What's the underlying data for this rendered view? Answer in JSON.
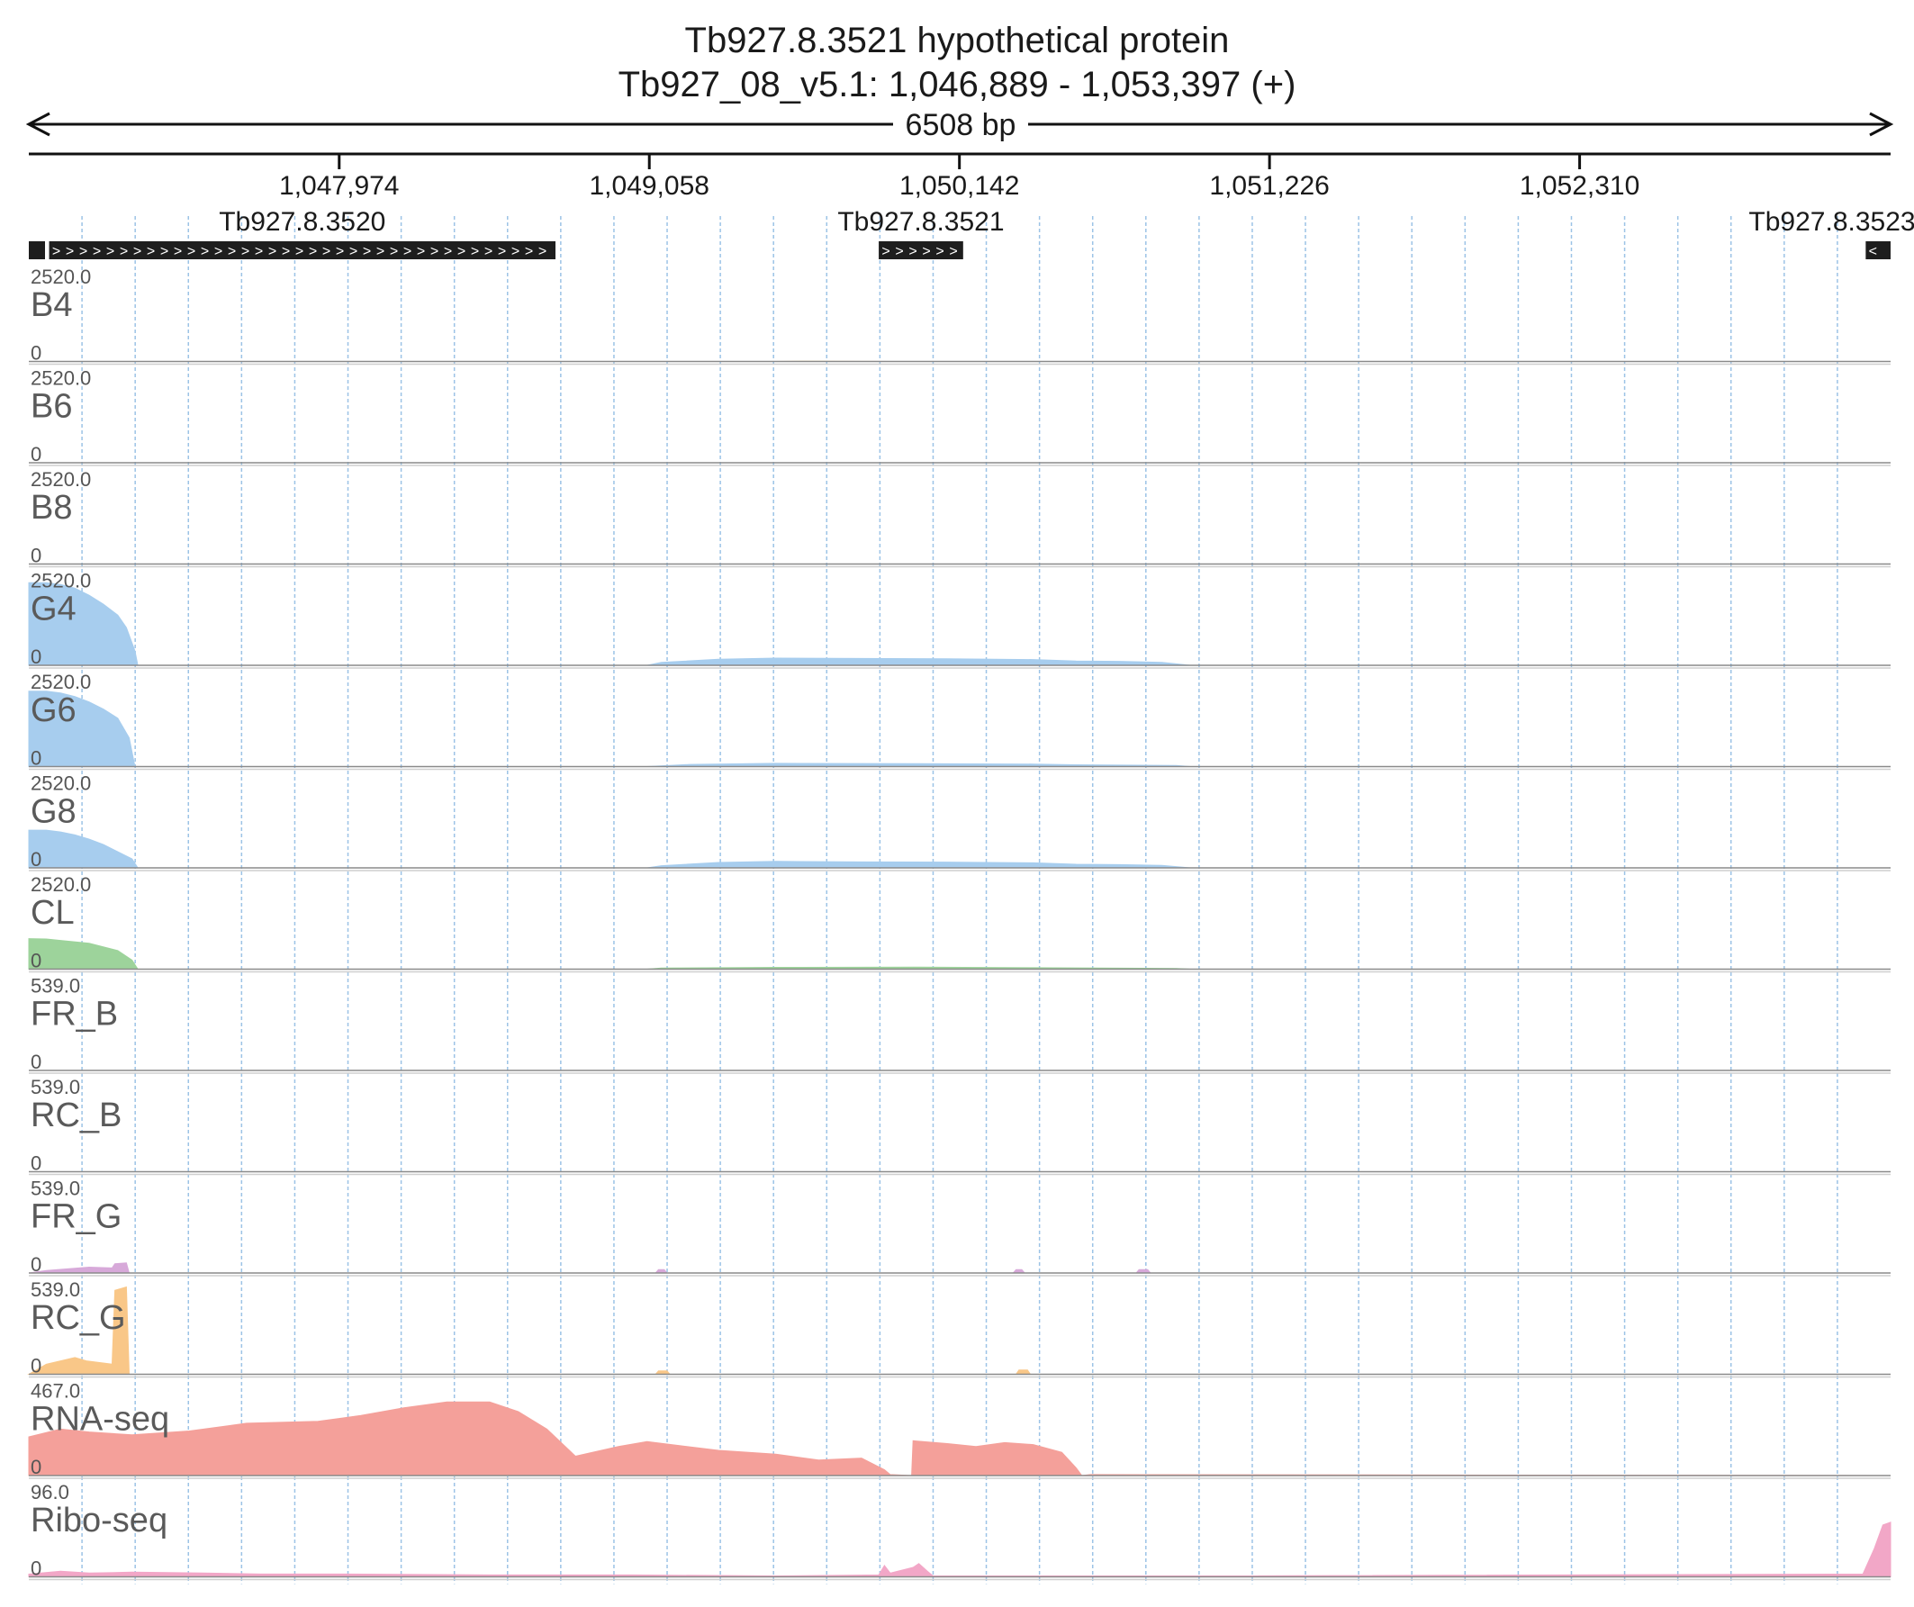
{
  "header": {
    "title": "Tb927.8.3521  hypothetical protein",
    "locus": "Tb927_08_v5.1: 1,046,889 - 1,053,397 (+)",
    "span_label": "6508 bp"
  },
  "chart_data": {
    "type": "area",
    "region": {
      "chrom": "Tb927_08_v5.1",
      "start": 1046889,
      "end": 1053397,
      "strand": "+"
    },
    "ruler_ticks": [
      1047974,
      1049058,
      1050142,
      1051226,
      1052310
    ],
    "ruler_tick_labels": [
      "1,047,974",
      "1,049,058",
      "1,050,142",
      "1,051,226",
      "1,052,310"
    ],
    "genes": [
      {
        "name": "Tb927.8.3520",
        "start": 1046960,
        "end": 1048730,
        "strand": "+"
      },
      {
        "name": "Tb927.8.3521",
        "start": 1049860,
        "end": 1050155,
        "strand": "+"
      },
      {
        "name": "Tb927.8.3523",
        "start": 1053310,
        "end": 1053397,
        "strand": "-"
      }
    ],
    "tracks": [
      {
        "name": "B4",
        "max": 2520.0,
        "max_label": "2520.0",
        "min_label": "0",
        "color": "#f5c97a",
        "points": [
          [
            1046889,
            0
          ],
          [
            1049500,
            0
          ],
          [
            1049600,
            8
          ],
          [
            1049900,
            0
          ],
          [
            1053397,
            0
          ]
        ]
      },
      {
        "name": "B6",
        "max": 2520.0,
        "max_label": "2520.0",
        "min_label": "0",
        "color": "#f5c97a",
        "points": [
          [
            1046889,
            0
          ],
          [
            1053397,
            0
          ]
        ]
      },
      {
        "name": "B8",
        "max": 2520.0,
        "max_label": "2520.0",
        "min_label": "0",
        "color": "#cfe3b0",
        "points": [
          [
            1046889,
            0
          ],
          [
            1053397,
            0
          ]
        ]
      },
      {
        "name": "G4",
        "max": 2520.0,
        "max_label": "2520.0",
        "min_label": "0",
        "color": "#a7cdee",
        "points": [
          [
            1046889,
            2300
          ],
          [
            1046950,
            2300
          ],
          [
            1047000,
            2250
          ],
          [
            1047050,
            2150
          ],
          [
            1047100,
            1950
          ],
          [
            1047150,
            1700
          ],
          [
            1047200,
            1400
          ],
          [
            1047230,
            1050
          ],
          [
            1047260,
            400
          ],
          [
            1047270,
            0
          ],
          [
            1049050,
            0
          ],
          [
            1049100,
            80
          ],
          [
            1049300,
            170
          ],
          [
            1049500,
            200
          ],
          [
            1049800,
            190
          ],
          [
            1050100,
            180
          ],
          [
            1050400,
            160
          ],
          [
            1050550,
            120
          ],
          [
            1050700,
            110
          ],
          [
            1050850,
            80
          ],
          [
            1050950,
            0
          ],
          [
            1053397,
            0
          ]
        ]
      },
      {
        "name": "G6",
        "max": 2520.0,
        "max_label": "2520.0",
        "min_label": "0",
        "color": "#a7cdee",
        "points": [
          [
            1046889,
            2100
          ],
          [
            1046950,
            2100
          ],
          [
            1047000,
            2050
          ],
          [
            1047050,
            1950
          ],
          [
            1047100,
            1800
          ],
          [
            1047150,
            1600
          ],
          [
            1047200,
            1350
          ],
          [
            1047240,
            800
          ],
          [
            1047260,
            0
          ],
          [
            1049050,
            0
          ],
          [
            1049200,
            60
          ],
          [
            1049500,
            90
          ],
          [
            1050000,
            80
          ],
          [
            1050400,
            70
          ],
          [
            1050550,
            50
          ],
          [
            1050900,
            30
          ],
          [
            1050950,
            0
          ],
          [
            1053397,
            0
          ]
        ]
      },
      {
        "name": "G8",
        "max": 2520.0,
        "max_label": "2520.0",
        "min_label": "0",
        "color": "#a7cdee",
        "points": [
          [
            1046889,
            1050
          ],
          [
            1046950,
            1050
          ],
          [
            1047000,
            1000
          ],
          [
            1047050,
            920
          ],
          [
            1047100,
            800
          ],
          [
            1047150,
            650
          ],
          [
            1047200,
            450
          ],
          [
            1047250,
            250
          ],
          [
            1047270,
            0
          ],
          [
            1049050,
            0
          ],
          [
            1049100,
            60
          ],
          [
            1049300,
            150
          ],
          [
            1049500,
            180
          ],
          [
            1049800,
            165
          ],
          [
            1050100,
            160
          ],
          [
            1050400,
            140
          ],
          [
            1050550,
            100
          ],
          [
            1050700,
            90
          ],
          [
            1050850,
            70
          ],
          [
            1050950,
            0
          ],
          [
            1053397,
            0
          ]
        ]
      },
      {
        "name": "CL",
        "max": 2520.0,
        "max_label": "2520.0",
        "min_label": "0",
        "color": "#9dd39b",
        "points": [
          [
            1046889,
            850
          ],
          [
            1046950,
            840
          ],
          [
            1047000,
            800
          ],
          [
            1047100,
            720
          ],
          [
            1047200,
            520
          ],
          [
            1047250,
            250
          ],
          [
            1047270,
            0
          ],
          [
            1049050,
            0
          ],
          [
            1049100,
            30
          ],
          [
            1049500,
            50
          ],
          [
            1050000,
            55
          ],
          [
            1050400,
            40
          ],
          [
            1050900,
            20
          ],
          [
            1050950,
            0
          ],
          [
            1053397,
            0
          ]
        ]
      },
      {
        "name": "FR_B",
        "max": 539.0,
        "max_label": "539.0",
        "min_label": "0",
        "color": "#d7a9d9",
        "points": [
          [
            1046889,
            0
          ],
          [
            1053397,
            0
          ]
        ]
      },
      {
        "name": "RC_B",
        "max": 539.0,
        "max_label": "539.0",
        "min_label": "0",
        "color": "#f5c97a",
        "points": [
          [
            1046889,
            0
          ],
          [
            1053397,
            0
          ]
        ]
      },
      {
        "name": "FR_G",
        "max": 539.0,
        "max_label": "539.0",
        "min_label": "0",
        "color": "#d7a9d9",
        "points": [
          [
            1046889,
            0
          ],
          [
            1046950,
            15
          ],
          [
            1047100,
            35
          ],
          [
            1047180,
            30
          ],
          [
            1047190,
            55
          ],
          [
            1047230,
            60
          ],
          [
            1047240,
            0
          ],
          [
            1049080,
            0
          ],
          [
            1049090,
            20
          ],
          [
            1049110,
            20
          ],
          [
            1049120,
            0
          ],
          [
            1050330,
            0
          ],
          [
            1050340,
            20
          ],
          [
            1050360,
            20
          ],
          [
            1050370,
            0
          ],
          [
            1050760,
            0
          ],
          [
            1050770,
            20
          ],
          [
            1050800,
            20
          ],
          [
            1050810,
            0
          ],
          [
            1053397,
            0
          ]
        ]
      },
      {
        "name": "RC_G",
        "max": 539.0,
        "max_label": "539.0",
        "min_label": "0",
        "color": "#f9c788",
        "points": [
          [
            1046889,
            0
          ],
          [
            1046950,
            60
          ],
          [
            1047050,
            100
          ],
          [
            1047090,
            80
          ],
          [
            1047180,
            60
          ],
          [
            1047190,
            500
          ],
          [
            1047230,
            520
          ],
          [
            1047240,
            0
          ],
          [
            1049080,
            0
          ],
          [
            1049090,
            20
          ],
          [
            1049120,
            20
          ],
          [
            1049130,
            0
          ],
          [
            1050340,
            0
          ],
          [
            1050350,
            25
          ],
          [
            1050380,
            25
          ],
          [
            1050390,
            0
          ],
          [
            1053397,
            0
          ]
        ]
      },
      {
        "name": "RNA-seq",
        "max": 467.0,
        "max_label": "467.0",
        "min_label": "0",
        "color": "#f4a09a",
        "points": [
          [
            1046889,
            200
          ],
          [
            1047000,
            240
          ],
          [
            1047100,
            225
          ],
          [
            1047250,
            210
          ],
          [
            1047450,
            230
          ],
          [
            1047650,
            270
          ],
          [
            1047900,
            280
          ],
          [
            1048050,
            310
          ],
          [
            1048200,
            350
          ],
          [
            1048350,
            380
          ],
          [
            1048500,
            380
          ],
          [
            1048600,
            330
          ],
          [
            1048700,
            240
          ],
          [
            1048800,
            100
          ],
          [
            1048950,
            150
          ],
          [
            1049050,
            175
          ],
          [
            1049300,
            130
          ],
          [
            1049500,
            110
          ],
          [
            1049650,
            80
          ],
          [
            1049800,
            90
          ],
          [
            1049880,
            30
          ],
          [
            1049900,
            5
          ],
          [
            1049975,
            0
          ],
          [
            1049980,
            180
          ],
          [
            1050100,
            165
          ],
          [
            1050200,
            150
          ],
          [
            1050300,
            170
          ],
          [
            1050400,
            160
          ],
          [
            1050500,
            120
          ],
          [
            1050550,
            40
          ],
          [
            1050570,
            0
          ],
          [
            1050600,
            5
          ],
          [
            1053397,
            0
          ]
        ]
      },
      {
        "name": "Ribo-seq",
        "max": 96.0,
        "max_label": "96.0",
        "min_label": "0",
        "color": "#f2a7c7",
        "points": [
          [
            1046889,
            3
          ],
          [
            1047000,
            6
          ],
          [
            1047100,
            4
          ],
          [
            1047250,
            5
          ],
          [
            1047500,
            4
          ],
          [
            1047700,
            3
          ],
          [
            1048000,
            3
          ],
          [
            1048500,
            2
          ],
          [
            1049000,
            2
          ],
          [
            1049500,
            1
          ],
          [
            1049860,
            2
          ],
          [
            1049880,
            12
          ],
          [
            1049900,
            4
          ],
          [
            1049980,
            10
          ],
          [
            1050000,
            14
          ],
          [
            1050030,
            6
          ],
          [
            1050050,
            1
          ],
          [
            1051000,
            1
          ],
          [
            1053300,
            3
          ],
          [
            1053340,
            30
          ],
          [
            1053370,
            55
          ],
          [
            1053397,
            58
          ]
        ]
      }
    ]
  }
}
